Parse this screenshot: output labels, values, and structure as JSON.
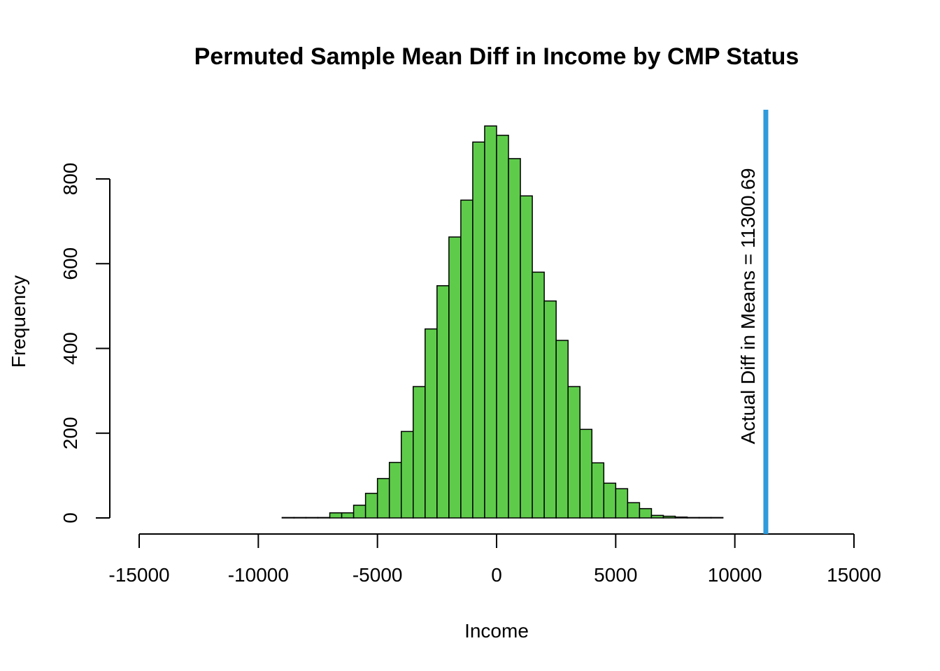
{
  "chart_data": {
    "type": "bar",
    "title": "Permuted Sample Mean Diff in Income by CMP Status",
    "xlabel": "Income",
    "ylabel": "Frequency",
    "xlim": [
      -15000,
      15000
    ],
    "ylim": [
      0,
      800
    ],
    "x_ticks": [
      "-15000",
      "-10000",
      "-5000",
      "0",
      "5000",
      "10000",
      "15000"
    ],
    "x_tick_values": [
      -15000,
      -10000,
      -5000,
      0,
      5000,
      10000,
      15000
    ],
    "y_ticks": [
      "0",
      "200",
      "400",
      "600",
      "800"
    ],
    "y_tick_values": [
      0,
      200,
      400,
      600,
      800
    ],
    "bin_width": 500,
    "bin_starts": [
      -9000,
      -8500,
      -8000,
      -7500,
      -7000,
      -6500,
      -6000,
      -5500,
      -5000,
      -4500,
      -4000,
      -3500,
      -3000,
      -2500,
      -2000,
      -1500,
      -1000,
      -500,
      0,
      500,
      1000,
      1500,
      2000,
      2500,
      3000,
      3500,
      4000,
      4500,
      5000,
      5500,
      6000,
      6500,
      7000,
      7500,
      8000,
      8500,
      9000
    ],
    "values": [
      1,
      1,
      1,
      1,
      12,
      12,
      30,
      58,
      93,
      131,
      204,
      310,
      446,
      548,
      663,
      750,
      887,
      925,
      903,
      848,
      760,
      580,
      512,
      419,
      310,
      209,
      130,
      82,
      69,
      36,
      22,
      6,
      4,
      2,
      1,
      1,
      1
    ],
    "bar_color": "#5ecc4a",
    "reference_line": {
      "value": 11300.69,
      "color": "#2e9bdc",
      "label": "Actual Diff in Means = 11300.69"
    }
  }
}
